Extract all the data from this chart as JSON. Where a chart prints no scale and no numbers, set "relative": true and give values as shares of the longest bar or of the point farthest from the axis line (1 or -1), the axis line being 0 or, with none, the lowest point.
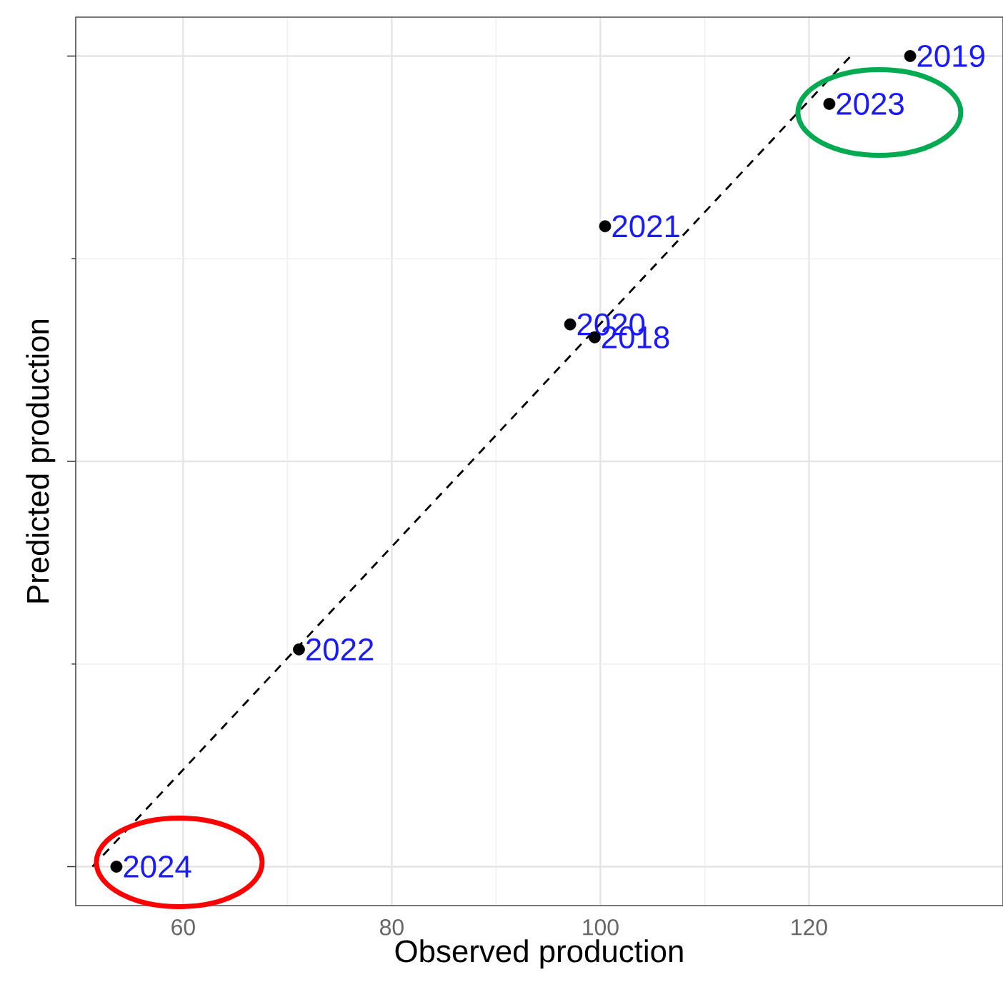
{
  "chart_data": {
    "type": "scatter",
    "relative": true,
    "xlabel": "Observed production",
    "ylabel": "Predicted production",
    "xlim": [
      49.7,
      138.6
    ],
    "xticks": [
      60,
      80,
      100,
      120
    ],
    "grid": true,
    "tick_labels": "x",
    "marker": "circle",
    "series": [
      {
        "type": "scatter",
        "color": "#000000",
        "x": [
          99.45,
          129.7,
          97.1,
          100.45,
          71.1,
          121.95,
          53.6
        ],
        "values": [
          0.653,
          1,
          0.669,
          0.79,
          0.268,
          0.941,
          0
        ]
      },
      {
        "type": "line",
        "color": "#000000",
        "line_style": "dashed",
        "marker": "none",
        "x": [
          51.3,
          124.0
        ],
        "values": [
          0,
          1
        ]
      }
    ],
    "annotations": [
      {
        "text": "2018",
        "x": 99.45,
        "y": 0.653
      },
      {
        "text": "2019",
        "x": 129.7,
        "y": 1
      },
      {
        "text": "2020",
        "x": 97.1,
        "y": 0.669
      },
      {
        "text": "2021",
        "x": 100.45,
        "y": 0.79
      },
      {
        "text": "2022",
        "x": 71.1,
        "y": 0.268
      },
      {
        "text": "2023",
        "x": 121.95,
        "y": 0.941
      },
      {
        "text": "2024",
        "x": 53.6,
        "y": 0
      }
    ]
  }
}
